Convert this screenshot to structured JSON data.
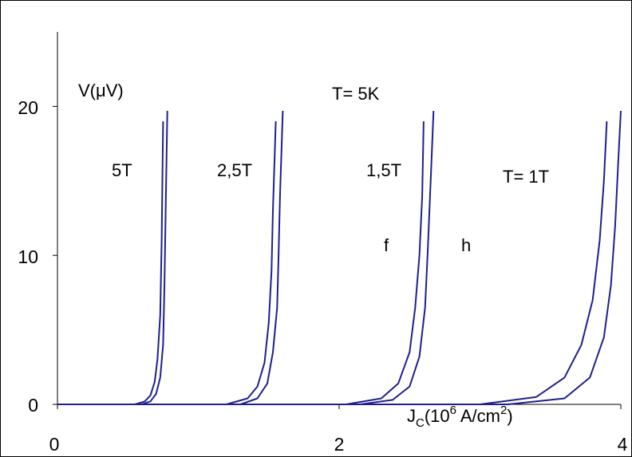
{
  "chart_data": {
    "type": "line",
    "title": "",
    "annotation_temperature": "T= 5K",
    "ylabel_parts": {
      "main": "V(",
      "mu": "μ",
      "rest": "V)"
    },
    "xlabel_parts": {
      "main": "J",
      "sub": "C",
      "mid": "(10",
      "sup1": "6",
      "unit": " A/cm",
      "sup2": "2",
      "end": ")"
    },
    "xlim": [
      0,
      4
    ],
    "ylim": [
      0,
      25
    ],
    "xticks": [
      "0",
      "2",
      "4"
    ],
    "yticks": [
      "0",
      "10",
      "20"
    ],
    "grid": false,
    "line_color": "#1f1f8f",
    "field_labels": [
      {
        "text": "5T"
      },
      {
        "text": "2,5T"
      },
      {
        "text": "1,5T"
      },
      {
        "text": "T= 1T"
      }
    ],
    "curve_markers": [
      {
        "text": "f"
      },
      {
        "text": "h"
      }
    ],
    "series": [
      {
        "field": "5T",
        "x": [
          0.55,
          0.62,
          0.66,
          0.69,
          0.71,
          0.73,
          0.74,
          0.75
        ],
        "y": [
          0,
          0.2,
          0.6,
          1.5,
          3,
          6,
          11,
          19
        ]
      },
      {
        "field": "5T",
        "x": [
          0.6,
          0.66,
          0.7,
          0.73,
          0.75,
          0.76,
          0.77,
          0.78
        ],
        "y": [
          0,
          0.2,
          0.7,
          1.8,
          4,
          8,
          14,
          19.7
        ]
      },
      {
        "field": "2,5T",
        "x": [
          1.2,
          1.35,
          1.42,
          1.47,
          1.5,
          1.52,
          1.53,
          1.55
        ],
        "y": [
          0,
          0.4,
          1.2,
          2.8,
          5.5,
          9,
          13,
          19
        ]
      },
      {
        "field": "2,5T",
        "x": [
          1.3,
          1.42,
          1.49,
          1.53,
          1.56,
          1.57,
          1.58,
          1.6
        ],
        "y": [
          0,
          0.4,
          1.4,
          3.5,
          6.5,
          10,
          14,
          19.7
        ]
      },
      {
        "field": "1,5T",
        "x": [
          2.05,
          2.3,
          2.42,
          2.5,
          2.54,
          2.57,
          2.59,
          2.6
        ],
        "y": [
          0,
          0.4,
          1.4,
          3.5,
          6.5,
          10,
          14,
          19
        ]
      },
      {
        "field": "1,5T",
        "x": [
          2.15,
          2.38,
          2.5,
          2.57,
          2.61,
          2.63,
          2.65,
          2.67
        ],
        "y": [
          0,
          0.3,
          1.2,
          3.2,
          6.5,
          10.5,
          15,
          19.7
        ]
      },
      {
        "field": "T= 1T",
        "x": [
          3.0,
          3.4,
          3.6,
          3.72,
          3.8,
          3.85,
          3.88,
          3.9
        ],
        "y": [
          0,
          0.5,
          1.8,
          4,
          7,
          11,
          15,
          19
        ]
      },
      {
        "field": "T= 1T",
        "x": [
          3.2,
          3.6,
          3.78,
          3.88,
          3.93,
          3.96,
          3.98,
          4.0
        ],
        "y": [
          0,
          0.4,
          1.8,
          4.5,
          8,
          12,
          16,
          19.7
        ]
      }
    ]
  }
}
